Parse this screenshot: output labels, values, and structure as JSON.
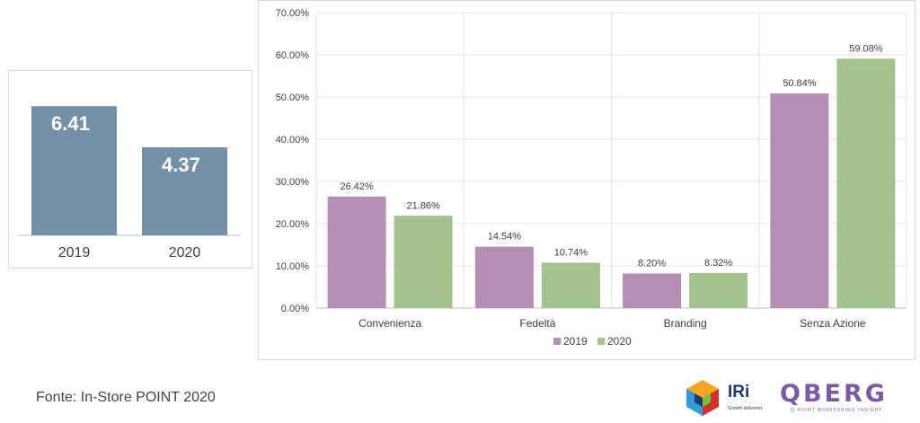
{
  "chart_data": [
    {
      "type": "bar",
      "categories": [
        "2019",
        "2020"
      ],
      "values": [
        6.41,
        4.37
      ],
      "value_labels": [
        "6.41",
        "4.37"
      ],
      "ylim": [
        0,
        7
      ],
      "color": "#7490a6",
      "grid": false
    },
    {
      "type": "bar",
      "categories": [
        "Convenienza",
        "Fedeltà",
        "Branding",
        "Senza Azione"
      ],
      "series": [
        {
          "name": "2019",
          "values": [
            26.42,
            14.54,
            8.2,
            50.84
          ],
          "labels": [
            "26.42%",
            "14.54%",
            "8.20%",
            "50.84%"
          ],
          "color": "#b48fb3"
        },
        {
          "name": "2020",
          "values": [
            21.86,
            10.74,
            8.32,
            59.08
          ],
          "labels": [
            "21.86%",
            "10.74%",
            "8.32%",
            "59.08%"
          ],
          "color": "#a3c28d"
        }
      ],
      "ylim": [
        0,
        70
      ],
      "yticks": [
        "0.00%",
        "10.00%",
        "20.00%",
        "30.00%",
        "40.00%",
        "50.00%",
        "60.00%",
        "70.00%"
      ],
      "grid": true,
      "legend_position": "bottom"
    }
  ],
  "source_text": "Fonte: In-Store POINT 2020",
  "logos": {
    "iri_name": "IRi",
    "iri_tagline": "Growth delivered.",
    "qberg_name": "QBERG",
    "qberg_tagline": "Q-POINT MONITORING INSIGHT"
  }
}
